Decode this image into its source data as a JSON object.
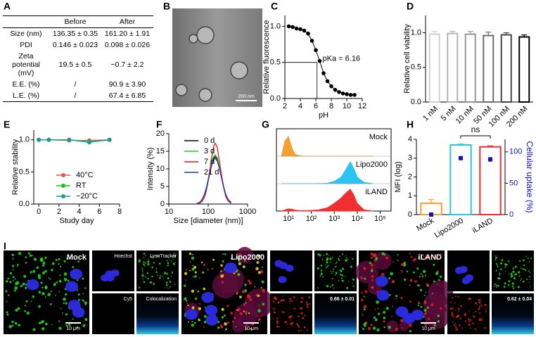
{
  "panel_labels": [
    "A",
    "B",
    "C",
    "D",
    "E",
    "F",
    "G",
    "H",
    "I"
  ],
  "table": {
    "header": [
      "Before",
      "After"
    ],
    "rows": [
      [
        "Size (nm)",
        "136.35 ± 0.35",
        "161.20 ± 1.91"
      ],
      [
        "PDI",
        "0.146 ± 0.023",
        "0.098 ± 0.026"
      ],
      [
        "Zeta potential (mV)",
        "19.5 ± 0.5",
        "−0.7 ± 2.2"
      ],
      [
        "E.E. (%)",
        "/",
        "90.9 ± 3.90"
      ],
      [
        "L.E. (%)",
        "/",
        "67.4 ± 6.85"
      ]
    ]
  },
  "micrographs": {
    "tem_scale": "200 nm",
    "channels": [
      "Hoechst",
      "LysoTracker",
      "Cy5",
      "Colocalization"
    ],
    "groups": [
      {
        "name": "Mock",
        "scale": "10 μm"
      },
      {
        "name": "Lipo2000",
        "scale": "10 μm",
        "coefficient": "0.66 ± 0.01"
      },
      {
        "name": "iLAND",
        "scale": "10 μm",
        "coefficient": "0.62 ± 0.04"
      }
    ]
  },
  "chart_data": [
    {
      "type": "scatter",
      "x": [
        2.5,
        3,
        3.5,
        4,
        4.5,
        5,
        5.5,
        6,
        6.5,
        7,
        7.5,
        8,
        8.5,
        9,
        9.5,
        10,
        10.5,
        11
      ],
      "values": [
        1.0,
        0.99,
        0.97,
        0.96,
        0.94,
        0.9,
        0.8,
        0.67,
        0.52,
        0.35,
        0.24,
        0.17,
        0.12,
        0.09,
        0.07,
        0.06,
        0.05,
        0.05
      ],
      "color": "#000000",
      "fit": true,
      "xlim": [
        2,
        12
      ],
      "ylim": [
        0,
        1.15
      ],
      "xticks": [
        2,
        4,
        6,
        8,
        10,
        12
      ],
      "yticks": [
        {
          "value": 0,
          "label": "0.0"
        },
        {
          "value": 0.5,
          "label": "0.5"
        },
        {
          "value": 1,
          "label": "1.0"
        }
      ],
      "xlabel": "pH",
      "ylabel": "Relative fluorescence",
      "annotation": "pKa = 6.16",
      "reference": {
        "x": 6.16,
        "y": 0.5
      }
    },
    {
      "type": "bar",
      "categories": [
        "1 nM",
        "5 nM",
        "10 nM",
        "50 nM",
        "100 nM",
        "200 nM"
      ],
      "values": [
        0.98,
        0.99,
        0.98,
        0.96,
        0.97,
        0.94
      ],
      "errors": [
        0.04,
        0.03,
        0.04,
        0.05,
        0.03,
        0.03
      ],
      "colors": [
        "#d0d0d0",
        "#b4b4b4",
        "#969696",
        "#6e6e6e",
        "#464646",
        "#000000"
      ],
      "hollow": true,
      "category_rotation": -45,
      "ylim": [
        0,
        1.25
      ],
      "yticks": [
        {
          "value": 0,
          "label": "0.0"
        },
        {
          "value": 0.5,
          "label": "0.5"
        },
        {
          "value": 1,
          "label": "1.0"
        }
      ],
      "ylabel": "Relative cell viability"
    },
    {
      "type": "line",
      "x": [
        0,
        1,
        3,
        5,
        7
      ],
      "series": [
        {
          "name": "40°C",
          "color": "#f05050",
          "values": [
            1,
            1,
            0.99,
            0.99,
            1
          ]
        },
        {
          "name": "RT",
          "color": "#22bb22",
          "values": [
            1,
            1,
            1,
            0.97,
            1
          ]
        },
        {
          "name": "−20°C",
          "color": "#1a9a9a",
          "values": [
            1,
            1,
            1,
            0.96,
            1
          ]
        }
      ],
      "markers": true,
      "xlim": [
        -0.5,
        8
      ],
      "ylim": [
        0,
        1.15
      ],
      "xticks": [
        0,
        2,
        4,
        6,
        8
      ],
      "yticks": [
        {
          "value": 0,
          "label": "0.0"
        },
        {
          "value": 0.5,
          "label": "0.5"
        },
        {
          "value": 1,
          "label": "1.0"
        }
      ],
      "xlabel": "Study day",
      "ylabel": "Relative stability",
      "legend": "lower right"
    },
    {
      "type": "line",
      "xlog": true,
      "x": [
        50,
        60,
        70,
        80,
        90,
        100,
        110,
        120,
        130,
        140,
        150,
        170,
        190,
        220,
        250,
        280,
        320,
        380
      ],
      "series": [
        {
          "name": "0 d",
          "color": "#000000",
          "values": [
            0.1,
            0.4,
            1.3,
            2.7,
            4.6,
            6.9,
            9.1,
            11.0,
            12.4,
            13.2,
            13.5,
            12.7,
            10.7,
            7.4,
            4.6,
            2.7,
            1.3,
            0.4
          ]
        },
        {
          "name": "3 d",
          "color": "#22cc22",
          "values": [
            0.1,
            0.4,
            1.3,
            2.8,
            4.8,
            7.2,
            9.4,
            11.4,
            12.9,
            13.7,
            14.0,
            13.2,
            11.1,
            7.7,
            4.8,
            2.8,
            1.3,
            0.4
          ]
        },
        {
          "name": "7 d",
          "color": "#e02020",
          "values": [
            0.0,
            0.2,
            0.7,
            1.9,
            3.8,
            6.6,
            9.6,
            12.6,
            15.0,
            16.7,
            17.3,
            16.0,
            12.6,
            7.9,
            4.3,
            2.1,
            0.8,
            0.2
          ]
        },
        {
          "name": "21 d",
          "color": "#2030c0",
          "values": [
            0.1,
            0.4,
            1.3,
            2.6,
            4.4,
            6.6,
            8.8,
            10.6,
            11.9,
            12.7,
            13.0,
            12.2,
            10.3,
            7.1,
            4.4,
            2.6,
            1.3,
            0.4
          ]
        }
      ],
      "xlim": [
        10,
        1000
      ],
      "ylim": [
        0,
        20
      ],
      "xticks": [
        10,
        100,
        1000
      ],
      "yticks": [
        0,
        5,
        10,
        15,
        20
      ],
      "xlabel": "Size [diameter (nm)]",
      "ylabel": "Intensity (%)",
      "legend": "upper right"
    },
    {
      "type": "density",
      "xlog": true,
      "frame": true,
      "x": [
        5,
        7,
        10,
        15,
        20,
        30,
        50,
        100,
        200,
        500,
        1000,
        2000,
        3000,
        5000,
        7000,
        10000,
        20000,
        50000
      ],
      "series": [
        {
          "name": "Mock",
          "color": "#f5a030",
          "values": [
            0,
            70,
            90,
            30,
            8,
            2,
            0,
            0,
            0,
            0,
            0,
            0,
            0,
            0,
            0,
            0,
            0,
            0
          ]
        },
        {
          "name": "Lipo2000",
          "color": "#29c5f0",
          "values": [
            0,
            0,
            0,
            0,
            0,
            0,
            0,
            0,
            0,
            2,
            10,
            30,
            60,
            100,
            70,
            30,
            5,
            0
          ]
        },
        {
          "name": "iLAND",
          "color": "#f03030",
          "values": [
            0,
            5,
            10,
            8,
            4,
            2,
            2,
            3,
            5,
            15,
            35,
            60,
            80,
            100,
            75,
            35,
            5,
            0
          ]
        }
      ],
      "xlim": [
        3,
        300000
      ],
      "ylim": [
        0,
        100
      ],
      "xticks": [
        {
          "value": 10,
          "label": "10¹"
        },
        {
          "value": 100,
          "label": "10²"
        },
        {
          "value": 1000,
          "label": "10³"
        },
        {
          "value": 10000,
          "label": "10⁴"
        },
        {
          "value": 100000,
          "label": "10⁵"
        }
      ]
    },
    {
      "type": "bar",
      "categories": [
        "Mock",
        "Lipo2000",
        "iLAND"
      ],
      "series": [
        {
          "values": [
            0.6,
            3.7,
            3.6
          ],
          "errors": [
            0.2,
            0.05,
            0.05
          ],
          "colors": [
            "#f5a030",
            "#29c5f0",
            "#f03030"
          ]
        },
        {
          "axis": "y2",
          "color": "#1010c8",
          "values": [
            0,
            90,
            88
          ],
          "errors": [
            1,
            3,
            4
          ]
        }
      ],
      "hollow": true,
      "category_rotation": -30,
      "ylim": [
        0,
        4
      ],
      "yticks": [
        0,
        1,
        2,
        3,
        4
      ],
      "y2lim": [
        0,
        120
      ],
      "y2ticks": [
        0,
        50,
        100
      ],
      "ylabel": "MFI (log)",
      "y2label": "Cellular uptake (%)",
      "y2color": "#1010c8",
      "annotation": "ns"
    }
  ]
}
